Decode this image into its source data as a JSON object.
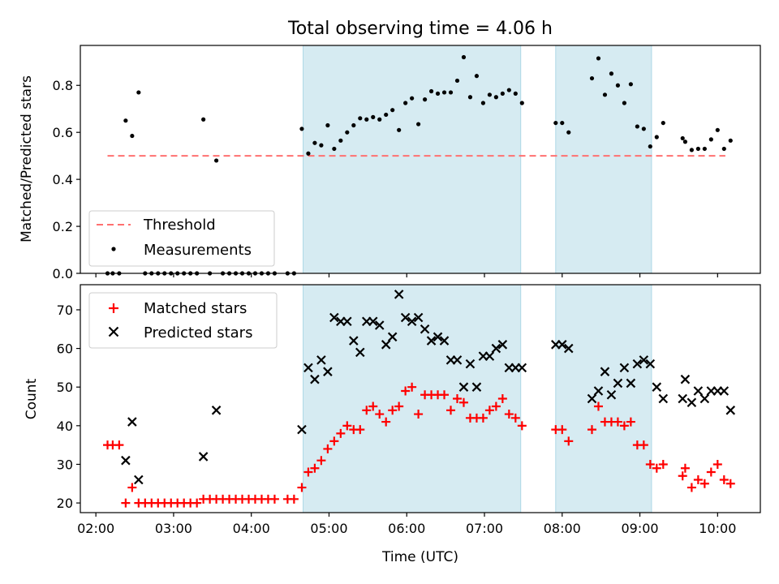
{
  "figure": {
    "title": "Total observing time = 4.06 h",
    "xlabel": "Time (UTC)",
    "x_ticks": [
      "02:00",
      "03:00",
      "04:00",
      "05:00",
      "06:00",
      "07:00",
      "08:00",
      "09:00",
      "10:00"
    ],
    "shaded_intervals": [
      [
        "04:40",
        "07:28"
      ],
      [
        "07:55",
        "09:09"
      ]
    ],
    "colors": {
      "shade": "#add8e6",
      "threshold": "#ff7070",
      "matched": "#ff0000",
      "predicted": "#000000",
      "measurements": "#000000"
    }
  },
  "chart_data": [
    {
      "type": "scatter",
      "ylabel": "Matched/Predicted stars",
      "xlim": [
        "01:48",
        "10:33"
      ],
      "ylim": [
        0,
        0.97
      ],
      "y_ticks": [
        "0.0",
        "0.2",
        "0.4",
        "0.6",
        "0.8"
      ],
      "legend": {
        "position": "lower-left",
        "entries": [
          "Threshold",
          "Measurements"
        ]
      },
      "threshold": {
        "name": "Threshold",
        "value": 0.5,
        "x_range": [
          "02:09",
          "10:06"
        ]
      },
      "series": [
        {
          "name": "Measurements",
          "points": [
            [
              "02:09",
              0.0
            ],
            [
              "02:13",
              0.0
            ],
            [
              "02:18",
              0.0
            ],
            [
              "02:23",
              0.65
            ],
            [
              "02:28",
              0.585
            ],
            [
              "02:33",
              0.77
            ],
            [
              "02:38",
              0.0
            ],
            [
              "02:43",
              0.0
            ],
            [
              "02:48",
              0.0
            ],
            [
              "02:53",
              0.0
            ],
            [
              "02:58",
              0.0
            ],
            [
              "03:03",
              0.0
            ],
            [
              "03:08",
              0.0
            ],
            [
              "03:13",
              0.0
            ],
            [
              "03:18",
              0.0
            ],
            [
              "03:23",
              0.655
            ],
            [
              "03:28",
              0.0
            ],
            [
              "03:33",
              0.48
            ],
            [
              "03:38",
              0.0
            ],
            [
              "03:43",
              0.0
            ],
            [
              "03:48",
              0.0
            ],
            [
              "03:53",
              0.0
            ],
            [
              "03:58",
              0.0
            ],
            [
              "04:03",
              0.0
            ],
            [
              "04:08",
              0.0
            ],
            [
              "04:13",
              0.0
            ],
            [
              "04:18",
              0.0
            ],
            [
              "04:28",
              0.0
            ],
            [
              "04:33",
              0.0
            ],
            [
              "04:39",
              0.615
            ],
            [
              "04:44",
              0.51
            ],
            [
              "04:49",
              0.555
            ],
            [
              "04:54",
              0.545
            ],
            [
              "04:59",
              0.63
            ],
            [
              "05:04",
              0.53
            ],
            [
              "05:09",
              0.565
            ],
            [
              "05:14",
              0.6
            ],
            [
              "05:19",
              0.63
            ],
            [
              "05:24",
              0.66
            ],
            [
              "05:29",
              0.655
            ],
            [
              "05:34",
              0.665
            ],
            [
              "05:39",
              0.655
            ],
            [
              "05:44",
              0.675
            ],
            [
              "05:49",
              0.695
            ],
            [
              "05:54",
              0.61
            ],
            [
              "05:59",
              0.725
            ],
            [
              "06:04",
              0.745
            ],
            [
              "06:09",
              0.635
            ],
            [
              "06:14",
              0.74
            ],
            [
              "06:19",
              0.775
            ],
            [
              "06:24",
              0.765
            ],
            [
              "06:29",
              0.77
            ],
            [
              "06:34",
              0.77
            ],
            [
              "06:39",
              0.82
            ],
            [
              "06:44",
              0.92
            ],
            [
              "06:49",
              0.75
            ],
            [
              "06:54",
              0.84
            ],
            [
              "06:59",
              0.725
            ],
            [
              "07:04",
              0.76
            ],
            [
              "07:09",
              0.75
            ],
            [
              "07:14",
              0.765
            ],
            [
              "07:19",
              0.78
            ],
            [
              "07:24",
              0.765
            ],
            [
              "07:29",
              0.725
            ],
            [
              "07:55",
              0.64
            ],
            [
              "08:00",
              0.64
            ],
            [
              "08:05",
              0.6
            ],
            [
              "08:23",
              0.83
            ],
            [
              "08:28",
              0.915
            ],
            [
              "08:33",
              0.76
            ],
            [
              "08:38",
              0.85
            ],
            [
              "08:43",
              0.8
            ],
            [
              "08:48",
              0.725
            ],
            [
              "08:53",
              0.805
            ],
            [
              "08:58",
              0.625
            ],
            [
              "09:03",
              0.615
            ],
            [
              "09:08",
              0.54
            ],
            [
              "09:13",
              0.58
            ],
            [
              "09:18",
              0.64
            ],
            [
              "09:33",
              0.575
            ],
            [
              "09:35",
              0.56
            ],
            [
              "09:40",
              0.525
            ],
            [
              "09:45",
              0.53
            ],
            [
              "09:50",
              0.53
            ],
            [
              "09:55",
              0.57
            ],
            [
              "10:00",
              0.61
            ],
            [
              "10:05",
              0.53
            ],
            [
              "10:10",
              0.565
            ]
          ]
        }
      ]
    },
    {
      "type": "scatter",
      "ylabel": "Count",
      "xlim": [
        "01:48",
        "10:33"
      ],
      "ylim": [
        17.5,
        76.5
      ],
      "y_ticks": [
        "20",
        "30",
        "40",
        "50",
        "60",
        "70"
      ],
      "legend": {
        "position": "upper-left",
        "entries": [
          "Matched stars",
          "Predicted stars"
        ]
      },
      "series": [
        {
          "name": "Matched stars",
          "marker": "plus",
          "points": [
            [
              "02:09",
              35
            ],
            [
              "02:13",
              35
            ],
            [
              "02:18",
              35
            ],
            [
              "02:23",
              20
            ],
            [
              "02:28",
              24
            ],
            [
              "02:33",
              20
            ],
            [
              "02:38",
              20
            ],
            [
              "02:43",
              20
            ],
            [
              "02:48",
              20
            ],
            [
              "02:53",
              20
            ],
            [
              "02:58",
              20
            ],
            [
              "03:03",
              20
            ],
            [
              "03:08",
              20
            ],
            [
              "03:13",
              20
            ],
            [
              "03:18",
              20
            ],
            [
              "03:23",
              21
            ],
            [
              "03:28",
              21
            ],
            [
              "03:33",
              21
            ],
            [
              "03:38",
              21
            ],
            [
              "03:43",
              21
            ],
            [
              "03:48",
              21
            ],
            [
              "03:53",
              21
            ],
            [
              "03:58",
              21
            ],
            [
              "04:03",
              21
            ],
            [
              "04:08",
              21
            ],
            [
              "04:13",
              21
            ],
            [
              "04:18",
              21
            ],
            [
              "04:28",
              21
            ],
            [
              "04:33",
              21
            ],
            [
              "04:39",
              24
            ],
            [
              "04:44",
              28
            ],
            [
              "04:49",
              29
            ],
            [
              "04:54",
              31
            ],
            [
              "04:59",
              34
            ],
            [
              "05:04",
              36
            ],
            [
              "05:09",
              38
            ],
            [
              "05:14",
              40
            ],
            [
              "05:19",
              39
            ],
            [
              "05:24",
              39
            ],
            [
              "05:29",
              44
            ],
            [
              "05:34",
              45
            ],
            [
              "05:39",
              43
            ],
            [
              "05:44",
              41
            ],
            [
              "05:49",
              44
            ],
            [
              "05:54",
              45
            ],
            [
              "05:59",
              49
            ],
            [
              "06:04",
              50
            ],
            [
              "06:09",
              43
            ],
            [
              "06:14",
              48
            ],
            [
              "06:19",
              48
            ],
            [
              "06:24",
              48
            ],
            [
              "06:29",
              48
            ],
            [
              "06:34",
              44
            ],
            [
              "06:39",
              47
            ],
            [
              "06:44",
              46
            ],
            [
              "06:49",
              42
            ],
            [
              "06:54",
              42
            ],
            [
              "06:59",
              42
            ],
            [
              "07:04",
              44
            ],
            [
              "07:09",
              45
            ],
            [
              "07:14",
              47
            ],
            [
              "07:19",
              43
            ],
            [
              "07:24",
              42
            ],
            [
              "07:29",
              40
            ],
            [
              "07:55",
              39
            ],
            [
              "08:00",
              39
            ],
            [
              "08:05",
              36
            ],
            [
              "08:23",
              39
            ],
            [
              "08:28",
              45
            ],
            [
              "08:33",
              41
            ],
            [
              "08:38",
              41
            ],
            [
              "08:43",
              41
            ],
            [
              "08:48",
              40
            ],
            [
              "08:53",
              41
            ],
            [
              "08:58",
              35
            ],
            [
              "09:03",
              35
            ],
            [
              "09:08",
              30
            ],
            [
              "09:13",
              29
            ],
            [
              "09:18",
              30
            ],
            [
              "09:33",
              27
            ],
            [
              "09:35",
              29
            ],
            [
              "09:40",
              24
            ],
            [
              "09:45",
              26
            ],
            [
              "09:50",
              25
            ],
            [
              "09:55",
              28
            ],
            [
              "10:00",
              30
            ],
            [
              "10:05",
              26
            ],
            [
              "10:10",
              25
            ]
          ]
        },
        {
          "name": "Predicted stars",
          "marker": "x",
          "points": [
            [
              "02:23",
              31
            ],
            [
              "02:28",
              41
            ],
            [
              "02:33",
              26
            ],
            [
              "03:23",
              32
            ],
            [
              "03:33",
              44
            ],
            [
              "04:39",
              39
            ],
            [
              "04:44",
              55
            ],
            [
              "04:49",
              52
            ],
            [
              "04:54",
              57
            ],
            [
              "04:59",
              54
            ],
            [
              "05:04",
              68
            ],
            [
              "05:09",
              67
            ],
            [
              "05:14",
              67
            ],
            [
              "05:19",
              62
            ],
            [
              "05:24",
              59
            ],
            [
              "05:29",
              67
            ],
            [
              "05:34",
              67
            ],
            [
              "05:39",
              66
            ],
            [
              "05:44",
              61
            ],
            [
              "05:49",
              63
            ],
            [
              "05:54",
              74
            ],
            [
              "05:59",
              68
            ],
            [
              "06:04",
              67
            ],
            [
              "06:09",
              68
            ],
            [
              "06:14",
              65
            ],
            [
              "06:19",
              62
            ],
            [
              "06:24",
              63
            ],
            [
              "06:29",
              62
            ],
            [
              "06:34",
              57
            ],
            [
              "06:39",
              57
            ],
            [
              "06:44",
              50
            ],
            [
              "06:49",
              56
            ],
            [
              "06:54",
              50
            ],
            [
              "06:59",
              58
            ],
            [
              "07:04",
              58
            ],
            [
              "07:09",
              60
            ],
            [
              "07:14",
              61
            ],
            [
              "07:19",
              55
            ],
            [
              "07:24",
              55
            ],
            [
              "07:29",
              55
            ],
            [
              "07:55",
              61
            ],
            [
              "08:00",
              61
            ],
            [
              "08:05",
              60
            ],
            [
              "08:23",
              47
            ],
            [
              "08:28",
              49
            ],
            [
              "08:33",
              54
            ],
            [
              "08:38",
              48
            ],
            [
              "08:43",
              51
            ],
            [
              "08:48",
              55
            ],
            [
              "08:53",
              51
            ],
            [
              "08:58",
              56
            ],
            [
              "09:03",
              57
            ],
            [
              "09:08",
              56
            ],
            [
              "09:13",
              50
            ],
            [
              "09:18",
              47
            ],
            [
              "09:33",
              47
            ],
            [
              "09:35",
              52
            ],
            [
              "09:40",
              46
            ],
            [
              "09:45",
              49
            ],
            [
              "09:50",
              47
            ],
            [
              "09:55",
              49
            ],
            [
              "10:00",
              49
            ],
            [
              "10:05",
              49
            ],
            [
              "10:10",
              44
            ]
          ]
        }
      ]
    }
  ]
}
